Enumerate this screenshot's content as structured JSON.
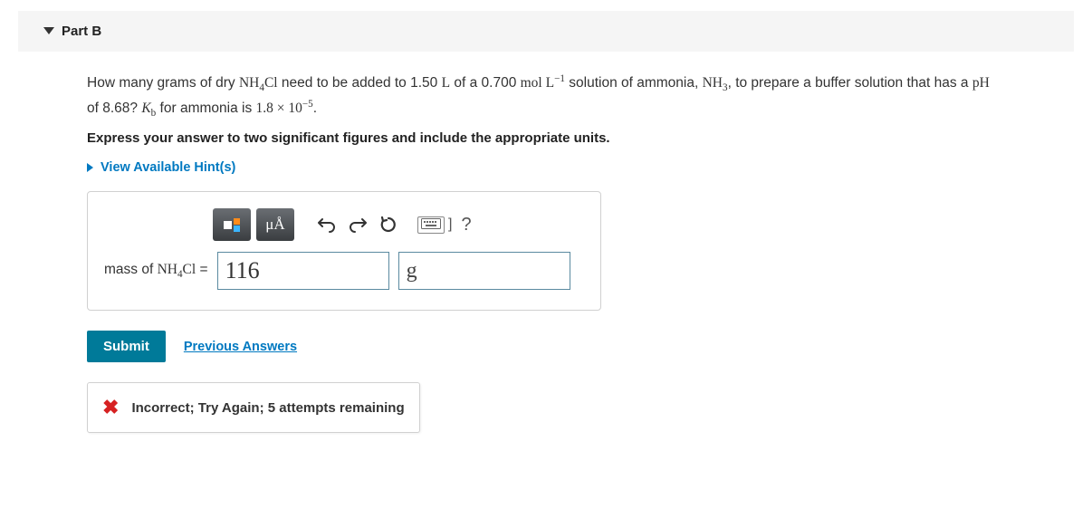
{
  "header": {
    "title": "Part B"
  },
  "question": {
    "html": "How many grams of dry <span class='chem'>NH<sub>4</sub>Cl</span> need to be added to 1.50 <span class='chem'>L</span> of a 0.700 <span class='chem'>mol L<sup>−1</sup></span> solution of ammonia, <span class='chem'>NH<sub>3</sub></span>, to prepare a buffer solution that has a <span class='chem'>pH</span> of 8.68? <span class='chem'><i>K</i><sub>b</sub></span> for ammonia is <span class='chem'>1.8 × 10<sup>−5</sup></span>."
  },
  "instruction": "Express your answer to two significant figures and include the appropriate units.",
  "hints": {
    "label": "View Available Hint(s)"
  },
  "toolbar": {
    "units_label": "μÅ",
    "help": "?"
  },
  "answer": {
    "label_html": "mass of <span class='chem'>NH<sub>4</sub>Cl</span> =",
    "value": "116",
    "unit": "g"
  },
  "buttons": {
    "submit": "Submit",
    "previous": "Previous Answers"
  },
  "feedback": {
    "status": "incorrect",
    "message": "Incorrect; Try Again; 5 attempts remaining"
  },
  "colors": {
    "accent_link": "#0079c1",
    "submit_bg": "#007a99",
    "error": "#d62122",
    "header_bg": "#f5f5f5",
    "border": "#d0d0d0",
    "input_border": "#5a8aa0"
  }
}
